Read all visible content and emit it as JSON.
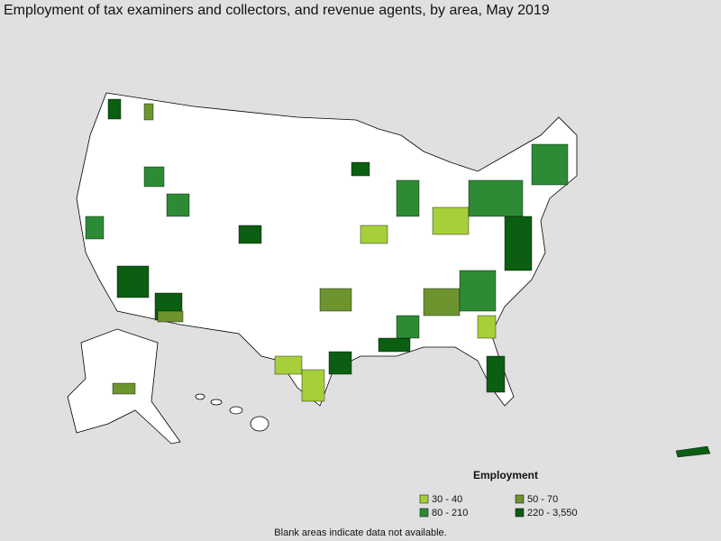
{
  "header": {
    "title": "Employment of tax examiners and collectors, and revenue agents, by area, May 2019"
  },
  "legend": {
    "title": "Employment",
    "items": [
      {
        "label": "30 - 40",
        "color": "#a6cf3a"
      },
      {
        "label": "50 - 70",
        "color": "#6e9430"
      },
      {
        "label": "80 - 210",
        "color": "#2e8b35"
      },
      {
        "label": "220 - 3,550",
        "color": "#0b5e12"
      }
    ]
  },
  "footnote": "Blank areas indicate data not available."
}
